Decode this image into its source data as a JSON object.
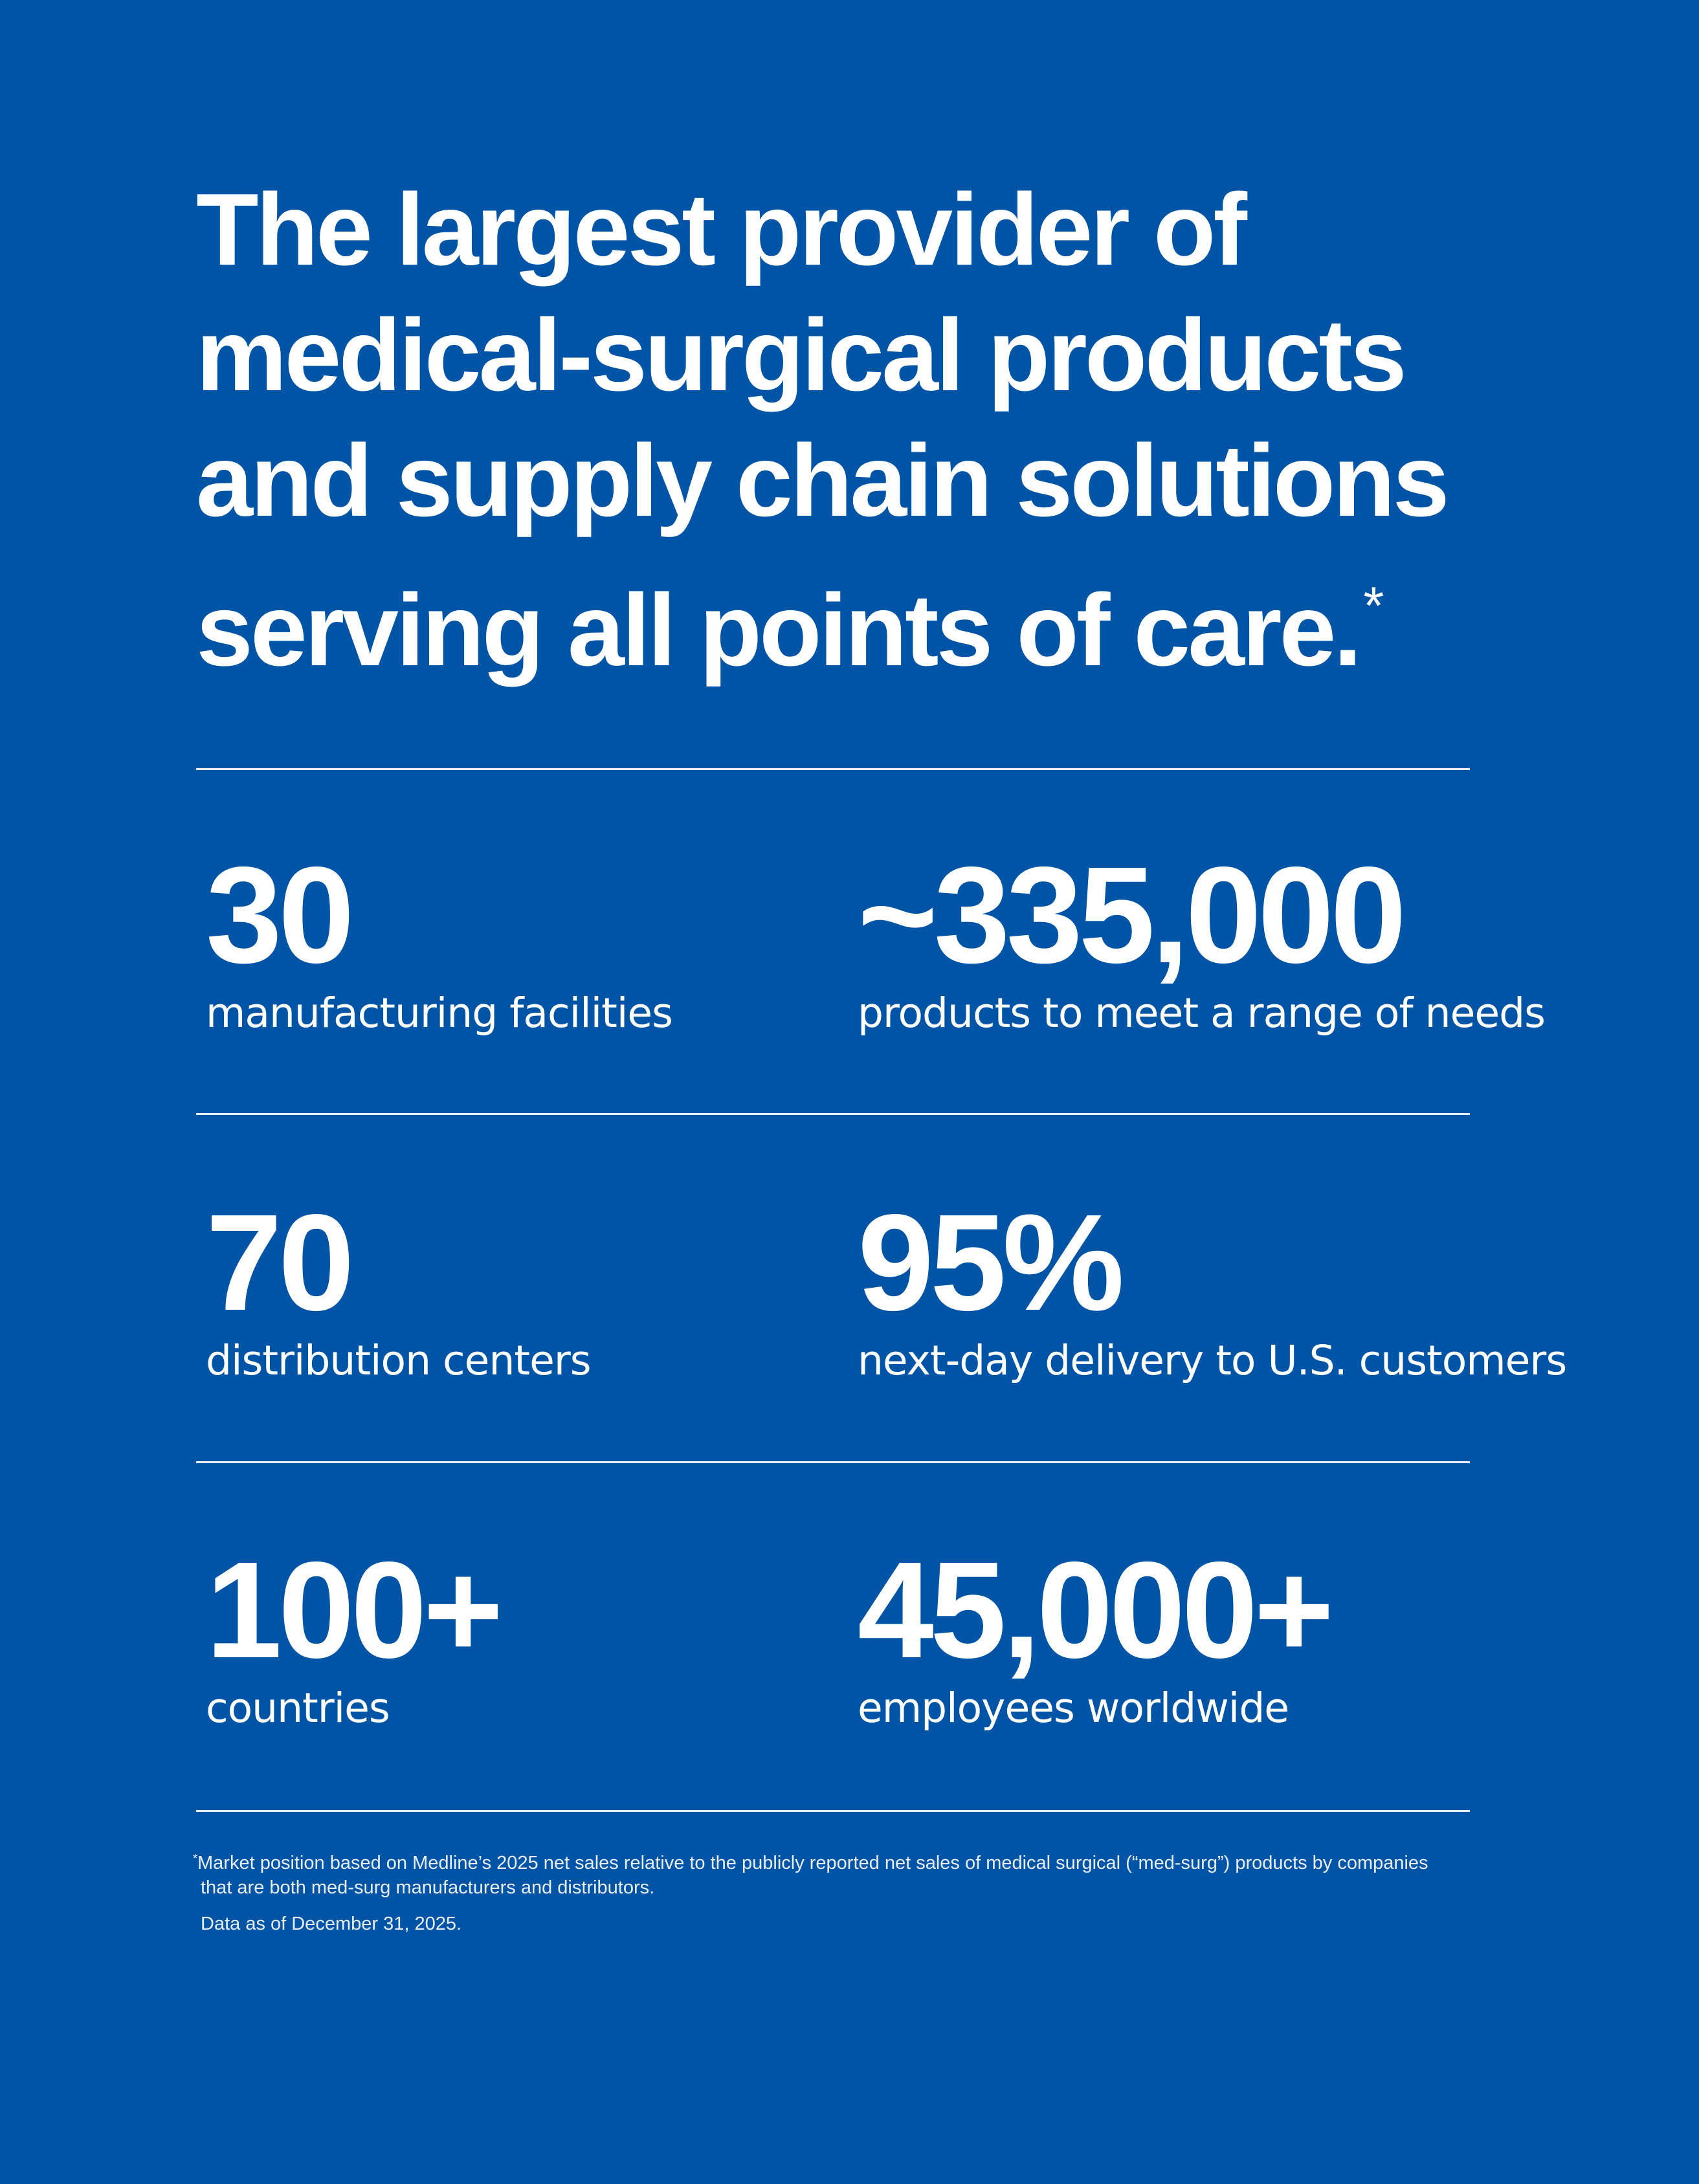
{
  "headline": {
    "lines": [
      "The largest provider of",
      "medical-surgical products",
      "and supply chain solutions",
      "serving all points of care."
    ],
    "asterisk": "*"
  },
  "stats": [
    {
      "value": "30",
      "label": "manufacturing facilities"
    },
    {
      "value": "~335,000",
      "label": "products to meet a range of needs"
    },
    {
      "value": "70",
      "label": "distribution centers"
    },
    {
      "value": "95%",
      "label": "next-day delivery to U.S. customers"
    },
    {
      "value": "100+",
      "label": "countries"
    },
    {
      "value": "45,000+",
      "label": "employees worldwide"
    }
  ],
  "footnote": {
    "marker": "*",
    "line1": "Market position based on Medline’s 2025 net sales relative to the publicly reported net sales of medical surgical (“med-surg”) products by companies",
    "line2": "that are both med-surg manufacturers and distributors.",
    "as_of": "Data as of December 31, 2025."
  },
  "colors": {
    "background": "#0054a6",
    "text": "#ffffff"
  }
}
